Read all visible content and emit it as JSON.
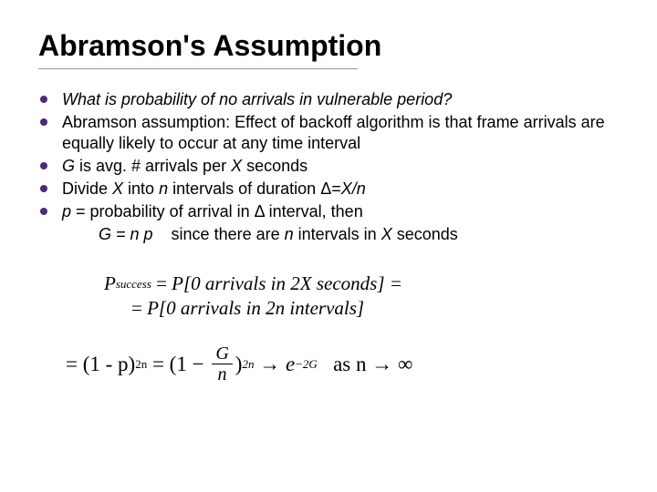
{
  "title": "Abramson's Assumption",
  "bullets": {
    "b1": "What is probability of no arrivals in vulnerable period?",
    "b2": "Abramson assumption:  Effect of backoff algorithm is that frame arrivals are equally likely to occur at any time interval",
    "b3_pre": "G",
    "b3_mid": " is avg. # arrivals per ",
    "b3_x": "X",
    "b3_post": " seconds",
    "b4_pre": "Divide ",
    "b4_x": "X",
    "b4_mid1": " into ",
    "b4_n": "n",
    "b4_mid2": " intervals of duration ",
    "b4_delta": "Δ=",
    "b4_xn": "X/n",
    "b5_p": "p",
    "b5_mid1": " = probability of arrival in ",
    "b5_delta": "Δ",
    "b5_post": " interval, then",
    "b5_line2_pre": "G = n p",
    "b5_line2_mid": "    since there are ",
    "b5_line2_n": "n",
    "b5_line2_mid2": " intervals in ",
    "b5_line2_x": "X",
    "b5_line2_post": " seconds"
  },
  "math": {
    "line1_lhs": "P",
    "line1_sub": "success",
    "line1_eq": " = ",
    "line1_rhs": "P[0 arrivals in 2X seconds] =",
    "line2_eq": "= ",
    "line2_rhs": "P[0 arrivals in 2n intervals]",
    "eq2_lhs": "= (1 - p)",
    "eq2_exp1": "2n",
    "eq2_mid1": " = (1 − ",
    "eq2_frac_num": "G",
    "eq2_frac_den": "n",
    "eq2_mid2": ")",
    "eq2_exp2": "2n",
    "eq2_arrow": " → ",
    "eq2_e": "e",
    "eq2_exp3": "−2G",
    "eq2_as": "   as n → ∞"
  },
  "colors": {
    "bullet": "#4a2a7a",
    "text": "#000000",
    "bg": "#ffffff",
    "underline": "#999999"
  }
}
